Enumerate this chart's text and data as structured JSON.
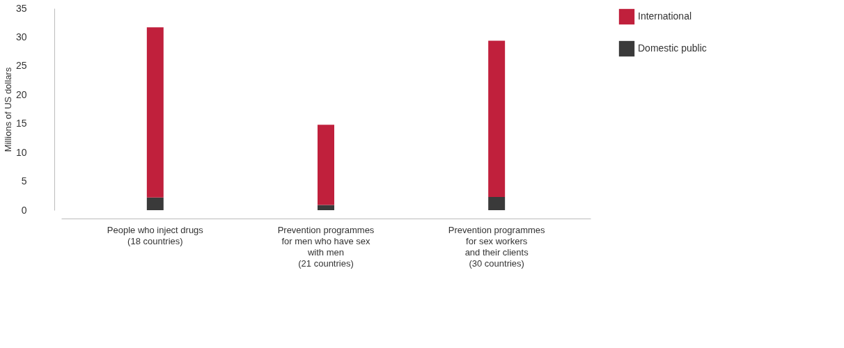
{
  "chart_data": {
    "type": "bar",
    "stacked": true,
    "categories": [
      "People who inject drugs\n(18 countries)",
      "Prevention programmes\nfor men who have sex\nwith men\n(21 countries)",
      "Prevention programmes\nfor sex workers\nand their clients\n(30 countries)"
    ],
    "series": [
      {
        "name": "Domestic public",
        "color": "#3a3a3a",
        "values": [
          2.2,
          0.9,
          2.3
        ]
      },
      {
        "name": "International",
        "color": "#c0203c",
        "values": [
          29.5,
          13.9,
          27.1
        ]
      }
    ],
    "ylabel": "Millions of US dollars",
    "ylim": [
      0,
      35
    ],
    "yticks": [
      0,
      5,
      10,
      15,
      20,
      25,
      30,
      35
    ],
    "grid": false,
    "legend": "right"
  }
}
